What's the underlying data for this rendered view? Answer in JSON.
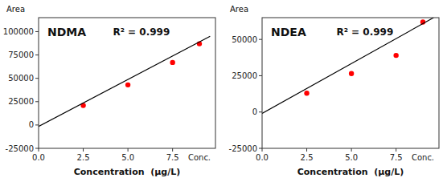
{
  "chart_data": [
    {
      "type": "scatter",
      "title": "NDMA",
      "annotations": [
        {
          "text": "R² = 0.999"
        },
        {
          "text": "Conc.",
          "x": 9.0
        }
      ],
      "x_label": "Concentration  (μg/L)",
      "y_label": "Area",
      "series": [
        {
          "type": "scatter",
          "color": "#ff0000",
          "marker": "circle",
          "x": [
            2.5,
            5.0,
            7.5,
            9.0
          ],
          "values": [
            21000,
            43000,
            67000,
            87000
          ]
        },
        {
          "type": "line",
          "color": "#000000",
          "line_style": "solid",
          "x": [
            0.0,
            9.6
          ],
          "values": [
            -1500,
            95000
          ]
        }
      ],
      "xlim": [
        0.0,
        9.9
      ],
      "xticks": [
        {
          "value": 0.0,
          "label": "0.0"
        },
        {
          "value": 2.5,
          "label": "2.5"
        },
        {
          "value": 5.0,
          "label": "5.0"
        },
        {
          "value": 7.5,
          "label": "7.5"
        }
      ],
      "ylim": [
        -25000,
        115000
      ],
      "yticks": [
        -25000,
        0,
        25000,
        50000,
        75000,
        100000
      ],
      "grid": false
    },
    {
      "type": "scatter",
      "title": "NDEA",
      "annotations": [
        {
          "text": "R² = 0.999"
        },
        {
          "text": "Conc.",
          "x": 9.0
        }
      ],
      "x_label": "Concentration  (μg/L)",
      "y_label": "Area",
      "series": [
        {
          "type": "scatter",
          "color": "#ff0000",
          "marker": "circle",
          "x": [
            2.5,
            5.0,
            7.5,
            9.0
          ],
          "values": [
            13000,
            26500,
            39000,
            62000
          ]
        },
        {
          "type": "line",
          "color": "#000000",
          "line_style": "solid",
          "x": [
            0.0,
            9.6
          ],
          "values": [
            -1000,
            65000
          ]
        }
      ],
      "xlim": [
        0.0,
        9.9
      ],
      "xticks": [
        {
          "value": 0.0,
          "label": "0.0"
        },
        {
          "value": 2.5,
          "label": "2.5"
        },
        {
          "value": 5.0,
          "label": "5.0"
        },
        {
          "value": 7.5,
          "label": "7.5"
        }
      ],
      "ylim": [
        -25000,
        65000
      ],
      "yticks": [
        -25000,
        0,
        25000,
        50000
      ],
      "grid": false
    }
  ]
}
